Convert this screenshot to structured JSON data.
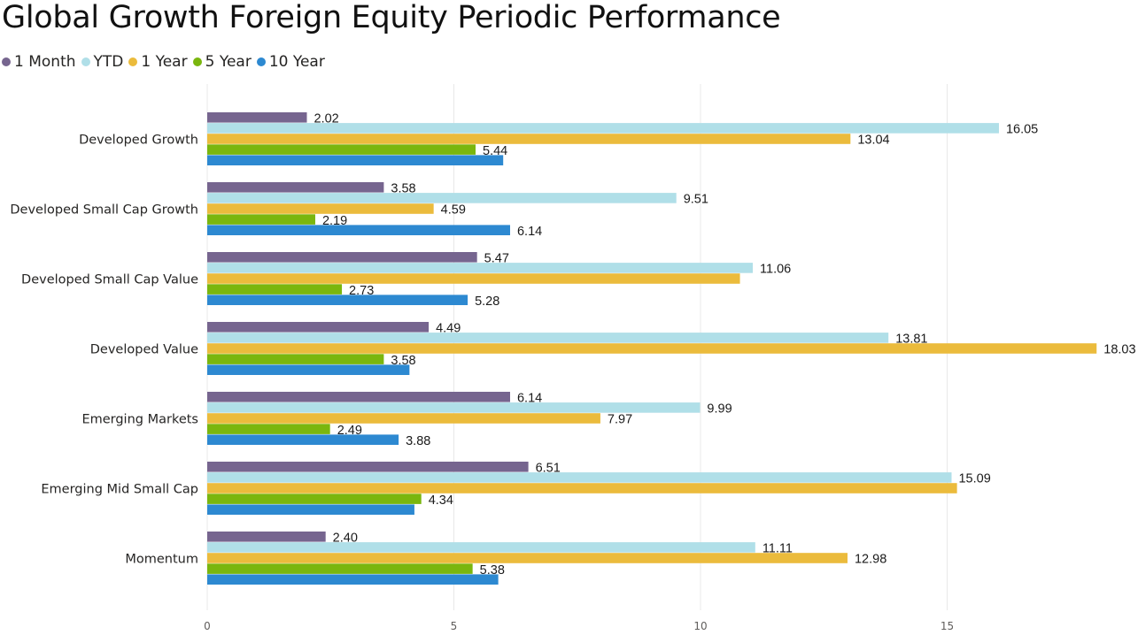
{
  "chart_data": {
    "type": "bar",
    "orientation": "horizontal",
    "title": "Global Growth Foreign Equity Periodic Performance",
    "categories": [
      "Developed Growth",
      "Developed Small Cap Growth",
      "Developed Small Cap Value",
      "Developed Value",
      "Emerging Markets",
      "Emerging Mid Small Cap",
      "Momentum"
    ],
    "series": [
      {
        "name": "1 Month",
        "color": "#76658f",
        "values": [
          2.02,
          3.58,
          5.47,
          4.49,
          6.14,
          6.51,
          2.4
        ],
        "labels": [
          "2.02",
          "3.58",
          "5.47",
          "4.49",
          "6.14",
          "6.51",
          "2.40"
        ]
      },
      {
        "name": "YTD",
        "color": "#b0dfe8",
        "values": [
          16.05,
          9.51,
          11.06,
          13.81,
          9.99,
          15.09,
          11.11
        ],
        "labels": [
          "16.05",
          "9.51",
          "11.06",
          "13.81",
          "9.99",
          "15.09",
          "11.11"
        ]
      },
      {
        "name": "1 Year",
        "color": "#ebbb3c",
        "values": [
          13.04,
          4.59,
          10.8,
          18.03,
          7.97,
          15.2,
          12.98
        ],
        "labels": [
          "13.04",
          "4.59",
          "",
          "18.03",
          "7.97",
          "",
          "12.98"
        ]
      },
      {
        "name": "5 Year",
        "color": "#7ab60e",
        "values": [
          5.44,
          2.19,
          2.73,
          3.58,
          2.49,
          4.34,
          5.38
        ],
        "labels": [
          "5.44",
          "2.19",
          "2.73",
          "3.58",
          "2.49",
          "4.34",
          "5.38"
        ]
      },
      {
        "name": "10 Year",
        "color": "#2d89d1",
        "values": [
          6.0,
          6.14,
          5.28,
          4.1,
          3.88,
          4.2,
          5.9
        ],
        "labels": [
          "",
          "6.14",
          "5.28",
          "",
          "3.88",
          "",
          ""
        ]
      }
    ],
    "x_ticks": [
      "0",
      "5",
      "10",
      "15"
    ],
    "xlim": [
      0,
      18.6
    ],
    "grid": true,
    "legend_position": "top-left"
  }
}
